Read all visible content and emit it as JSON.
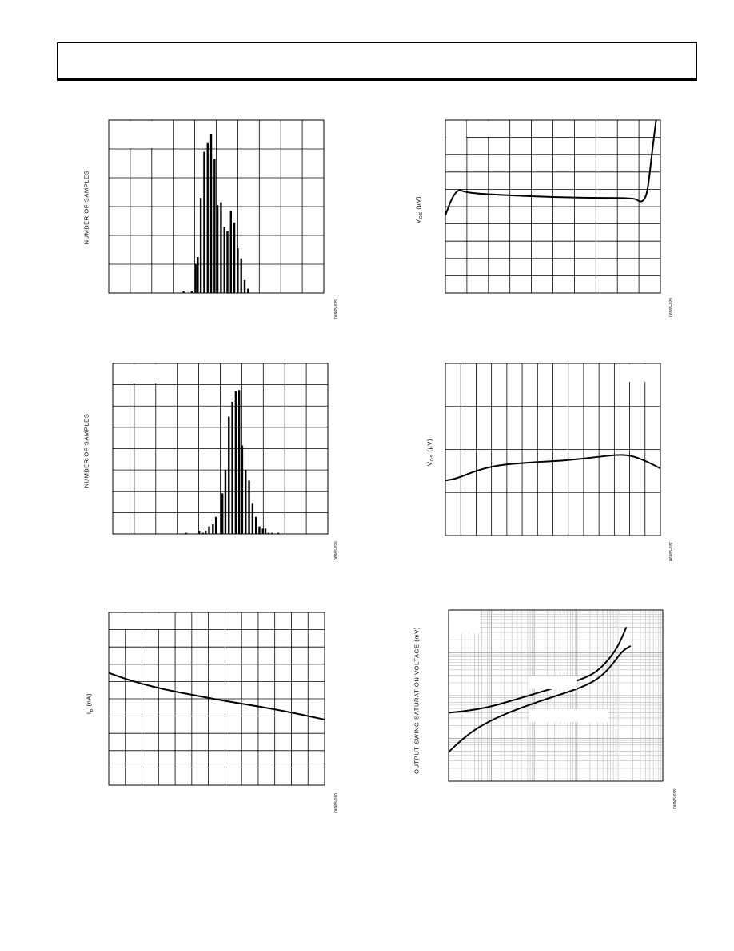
{
  "chart_data": [
    {
      "id": "hist1",
      "type": "bar",
      "ylabel": "NUMBER OF SAMPLES",
      "fig_code": "06965-025",
      "grid": true,
      "grid_divisions": [
        10,
        6
      ],
      "ylim": [
        0,
        60
      ],
      "xlim": [
        0,
        50
      ],
      "values": [
        {
          "x": 17.4,
          "y": 0.6
        },
        {
          "x": 19.3,
          "y": 0.6
        },
        {
          "x": 20.2,
          "y": 10
        },
        {
          "x": 20.7,
          "y": 12.5
        },
        {
          "x": 21.4,
          "y": 33
        },
        {
          "x": 22.2,
          "y": 49
        },
        {
          "x": 23.0,
          "y": 52
        },
        {
          "x": 23.8,
          "y": 55
        },
        {
          "x": 24.6,
          "y": 46.5
        },
        {
          "x": 25.3,
          "y": 30.5
        },
        {
          "x": 26.1,
          "y": 31.5
        },
        {
          "x": 26.9,
          "y": 23
        },
        {
          "x": 27.6,
          "y": 21.5
        },
        {
          "x": 28.4,
          "y": 28.5
        },
        {
          "x": 29.2,
          "y": 24.5
        },
        {
          "x": 30.0,
          "y": 15.5
        },
        {
          "x": 30.8,
          "y": 12
        },
        {
          "x": 31.6,
          "y": 4.5
        },
        {
          "x": 32.4,
          "y": 1.5
        }
      ]
    },
    {
      "id": "vos1",
      "type": "line",
      "ylabel_main": "V",
      "ylabel_sub": "OS",
      "ylabel_unit": "(µV)",
      "fig_code": "06965-029",
      "grid": true,
      "grid_divisions": [
        10,
        10
      ],
      "xlim": [
        0,
        100
      ],
      "ylim": [
        0,
        100
      ],
      "series": [
        {
          "points": [
            [
              0,
              45
            ],
            [
              3,
              55
            ],
            [
              6,
              60
            ],
            [
              9,
              58.5
            ],
            [
              15,
              57.5
            ],
            [
              30,
              56.5
            ],
            [
              50,
              55.5
            ],
            [
              70,
              55
            ],
            [
              88,
              55
            ],
            [
              90,
              53
            ],
            [
              92,
              53
            ],
            [
              94,
              58
            ],
            [
              96,
              80
            ],
            [
              98,
              100
            ]
          ]
        }
      ]
    },
    {
      "id": "hist2",
      "type": "bar",
      "ylabel": "NUMBER OF SAMPLES",
      "fig_code": "06965-026",
      "grid": true,
      "grid_divisions": [
        10,
        8
      ],
      "ylim": [
        0,
        80
      ],
      "xlim": [
        0,
        50
      ],
      "values": [
        {
          "x": 17.1,
          "y": 0.5
        },
        {
          "x": 20.1,
          "y": 1.5
        },
        {
          "x": 21.0,
          "y": 0.5
        },
        {
          "x": 21.6,
          "y": 1.5
        },
        {
          "x": 22.4,
          "y": 3.5
        },
        {
          "x": 23.3,
          "y": 4.5
        },
        {
          "x": 24.0,
          "y": 8
        },
        {
          "x": 25.5,
          "y": 19
        },
        {
          "x": 26.2,
          "y": 30
        },
        {
          "x": 27.0,
          "y": 55
        },
        {
          "x": 27.8,
          "y": 62
        },
        {
          "x": 28.6,
          "y": 67
        },
        {
          "x": 29.4,
          "y": 67.5
        },
        {
          "x": 30.1,
          "y": 41.5
        },
        {
          "x": 30.9,
          "y": 30
        },
        {
          "x": 31.7,
          "y": 25
        },
        {
          "x": 32.5,
          "y": 14.5
        },
        {
          "x": 33.3,
          "y": 8
        },
        {
          "x": 34.1,
          "y": 3.5
        },
        {
          "x": 34.9,
          "y": 2.5
        },
        {
          "x": 35.5,
          "y": 2.5
        },
        {
          "x": 36.2,
          "y": 0.5
        },
        {
          "x": 37.0,
          "y": 0.5
        },
        {
          "x": 38.5,
          "y": 0.5
        }
      ]
    },
    {
      "id": "vos2",
      "type": "line",
      "ylabel_main": "V",
      "ylabel_sub": "OS",
      "ylabel_unit": "(µV)",
      "fig_code": "06965-027",
      "grid": true,
      "grid_divisions": [
        14,
        4
      ],
      "xlim": [
        0,
        100
      ],
      "ylim": [
        0,
        100
      ],
      "series": [
        {
          "points": [
            [
              0,
              32
            ],
            [
              5,
              33
            ],
            [
              15,
              38
            ],
            [
              25,
              41
            ],
            [
              40,
              42.5
            ],
            [
              55,
              43.5
            ],
            [
              70,
              45.5
            ],
            [
              80,
              47
            ],
            [
              86,
              46.5
            ],
            [
              92,
              44
            ],
            [
              100,
              39
            ]
          ]
        }
      ]
    },
    {
      "id": "ib",
      "type": "line",
      "ylabel_main": "I",
      "ylabel_sub": "B",
      "ylabel_unit": "(nA)",
      "fig_code": "06965-030",
      "grid": true,
      "grid_divisions": [
        13,
        10
      ],
      "xlim": [
        0,
        100
      ],
      "ylim": [
        0,
        100
      ],
      "series": [
        {
          "points": [
            [
              0,
              65
            ],
            [
              10,
              60.5
            ],
            [
              25,
              55.5
            ],
            [
              40,
              52
            ],
            [
              55,
              48.5
            ],
            [
              70,
              45.5
            ],
            [
              85,
              42
            ],
            [
              100,
              38
            ]
          ]
        }
      ]
    },
    {
      "id": "swing",
      "type": "line",
      "ylabel": "OUTPUT SWING SATURATION VOLTAGE (mV)",
      "fig_code": "06965-028",
      "grid": true,
      "log_x": true,
      "log_y": true,
      "xlim": [
        0,
        100
      ],
      "ylim": [
        0,
        100
      ],
      "series": [
        {
          "points": [
            [
              0,
              40
            ],
            [
              8,
              41
            ],
            [
              18,
              43
            ],
            [
              28,
              46.5
            ],
            [
              40,
              51
            ],
            [
              52,
              55.5
            ],
            [
              62,
              59.5
            ],
            [
              68,
              63
            ],
            [
              73,
              68.5
            ],
            [
              78,
              76.5
            ],
            [
              81,
              84
            ],
            [
              83,
              90
            ]
          ]
        },
        {
          "points": [
            [
              0,
              17
            ],
            [
              5,
              23
            ],
            [
              12,
              30
            ],
            [
              22,
              37
            ],
            [
              35,
              43.5
            ],
            [
              48,
              49
            ],
            [
              58,
              53
            ],
            [
              66,
              57
            ],
            [
              72,
              62
            ],
            [
              77,
              69
            ],
            [
              81,
              76
            ],
            [
              85,
              79
            ]
          ]
        }
      ]
    }
  ]
}
